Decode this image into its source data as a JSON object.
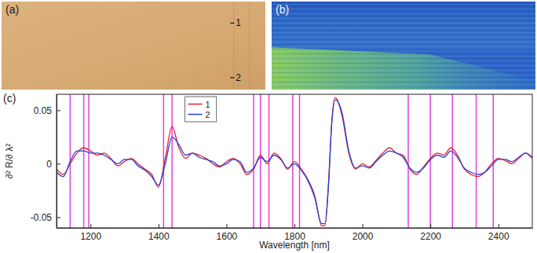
{
  "chart_data": [
    {
      "type": "image",
      "title": "(a)",
      "annotations": [
        "1",
        "2"
      ]
    },
    {
      "type": "image",
      "title": "(b)"
    },
    {
      "type": "line",
      "title": "(c)",
      "x_label": "Wavelength [nm]",
      "y_label": "∂² R/∂ λ²",
      "xlim": [
        1100,
        2500
      ],
      "xticks": [
        1200,
        1400,
        1600,
        1800,
        2000,
        2200,
        2400
      ],
      "ylim": [
        -0.06,
        0.065
      ],
      "yticks": [
        -0.05,
        0,
        0.05
      ],
      "legend": "top",
      "x": [
        1100,
        1120,
        1140,
        1160,
        1180,
        1200,
        1220,
        1240,
        1260,
        1280,
        1300,
        1320,
        1340,
        1360,
        1380,
        1400,
        1420,
        1440,
        1460,
        1480,
        1500,
        1520,
        1540,
        1560,
        1580,
        1600,
        1620,
        1640,
        1660,
        1680,
        1700,
        1720,
        1740,
        1760,
        1780,
        1800,
        1820,
        1840,
        1860,
        1880,
        1890,
        1900,
        1910,
        1920,
        1940,
        1960,
        1980,
        2000,
        2020,
        2040,
        2060,
        2080,
        2100,
        2120,
        2140,
        2160,
        2180,
        2200,
        2220,
        2240,
        2260,
        2280,
        2300,
        2320,
        2340,
        2360,
        2380,
        2400,
        2420,
        2440,
        2460,
        2480,
        2500
      ],
      "series": [
        {
          "name": "1",
          "color": "#e8202a",
          "values": [
            -0.005,
            -0.01,
            0.0,
            0.01,
            0.015,
            0.012,
            0.008,
            0.01,
            0.005,
            -0.002,
            0.002,
            0.005,
            0.0,
            -0.005,
            -0.01,
            -0.022,
            0.005,
            0.035,
            0.015,
            0.005,
            0.01,
            0.008,
            0.005,
            0.0,
            -0.003,
            0.002,
            0.005,
            0.0,
            -0.01,
            -0.005,
            0.008,
            0.0,
            0.01,
            0.005,
            -0.005,
            0.002,
            -0.005,
            -0.015,
            -0.03,
            -0.058,
            -0.058,
            -0.02,
            0.04,
            0.062,
            0.045,
            0.01,
            -0.005,
            0.0,
            -0.003,
            0.003,
            0.01,
            0.015,
            0.01,
            0.008,
            -0.005,
            -0.01,
            -0.003,
            0.005,
            0.01,
            0.008,
            0.015,
            0.008,
            -0.005,
            -0.01,
            -0.012,
            -0.008,
            0.0,
            0.005,
            0.003,
            0.0,
            0.005,
            0.01,
            0.005
          ]
        },
        {
          "name": "2",
          "color": "#2040e0",
          "values": [
            -0.008,
            -0.012,
            0.002,
            0.012,
            0.012,
            0.01,
            0.01,
            0.008,
            0.004,
            0.0,
            0.004,
            0.004,
            -0.002,
            -0.006,
            -0.012,
            -0.02,
            0.0,
            0.025,
            0.018,
            0.008,
            0.01,
            0.006,
            0.004,
            0.002,
            -0.002,
            0.0,
            0.004,
            0.002,
            -0.008,
            -0.004,
            0.006,
            0.002,
            0.008,
            0.004,
            -0.004,
            0.0,
            -0.006,
            -0.016,
            -0.032,
            -0.056,
            -0.056,
            -0.022,
            0.038,
            0.06,
            0.048,
            0.012,
            -0.004,
            -0.002,
            -0.004,
            0.002,
            0.008,
            0.012,
            0.01,
            0.006,
            -0.004,
            -0.008,
            -0.004,
            0.004,
            0.008,
            0.006,
            0.012,
            0.006,
            -0.004,
            -0.008,
            -0.01,
            -0.008,
            -0.002,
            0.004,
            0.004,
            0.002,
            0.006,
            0.01,
            0.006
          ]
        }
      ],
      "vertical_lines": [
        1140,
        1180,
        1195,
        1415,
        1440,
        1680,
        1700,
        1725,
        1795,
        1815,
        2135,
        2200,
        2265,
        2335,
        2385
      ],
      "vertical_line_color": "#e040e0"
    }
  ]
}
